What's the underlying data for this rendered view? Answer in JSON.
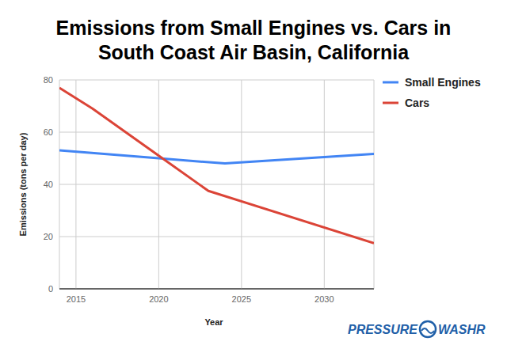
{
  "chart_data": {
    "type": "line",
    "title": "Emissions from Small Engines vs. Cars in South Coast Air Basin, California",
    "x_label": "Year",
    "y_label": "Emissions (tons per day)",
    "series": [
      {
        "name": "Small Engines",
        "color": "#4285f4",
        "x": [
          2014,
          2020,
          2024,
          2033
        ],
        "values": [
          53,
          50,
          48,
          51.7
        ]
      },
      {
        "name": "Cars",
        "color": "#db4437",
        "x": [
          2014,
          2016,
          2020,
          2023,
          2033
        ],
        "values": [
          77,
          69,
          51,
          37.5,
          17.5
        ]
      }
    ],
    "xlim": [
      2014,
      2033
    ],
    "xticks": [
      2015,
      2020,
      2025,
      2030
    ],
    "ylim": [
      0,
      80
    ],
    "yticks": [
      0,
      20,
      40,
      60,
      80
    ],
    "grid": true,
    "legend": "top-right",
    "annotations": [
      "PRESSURE",
      "WASHR"
    ]
  }
}
